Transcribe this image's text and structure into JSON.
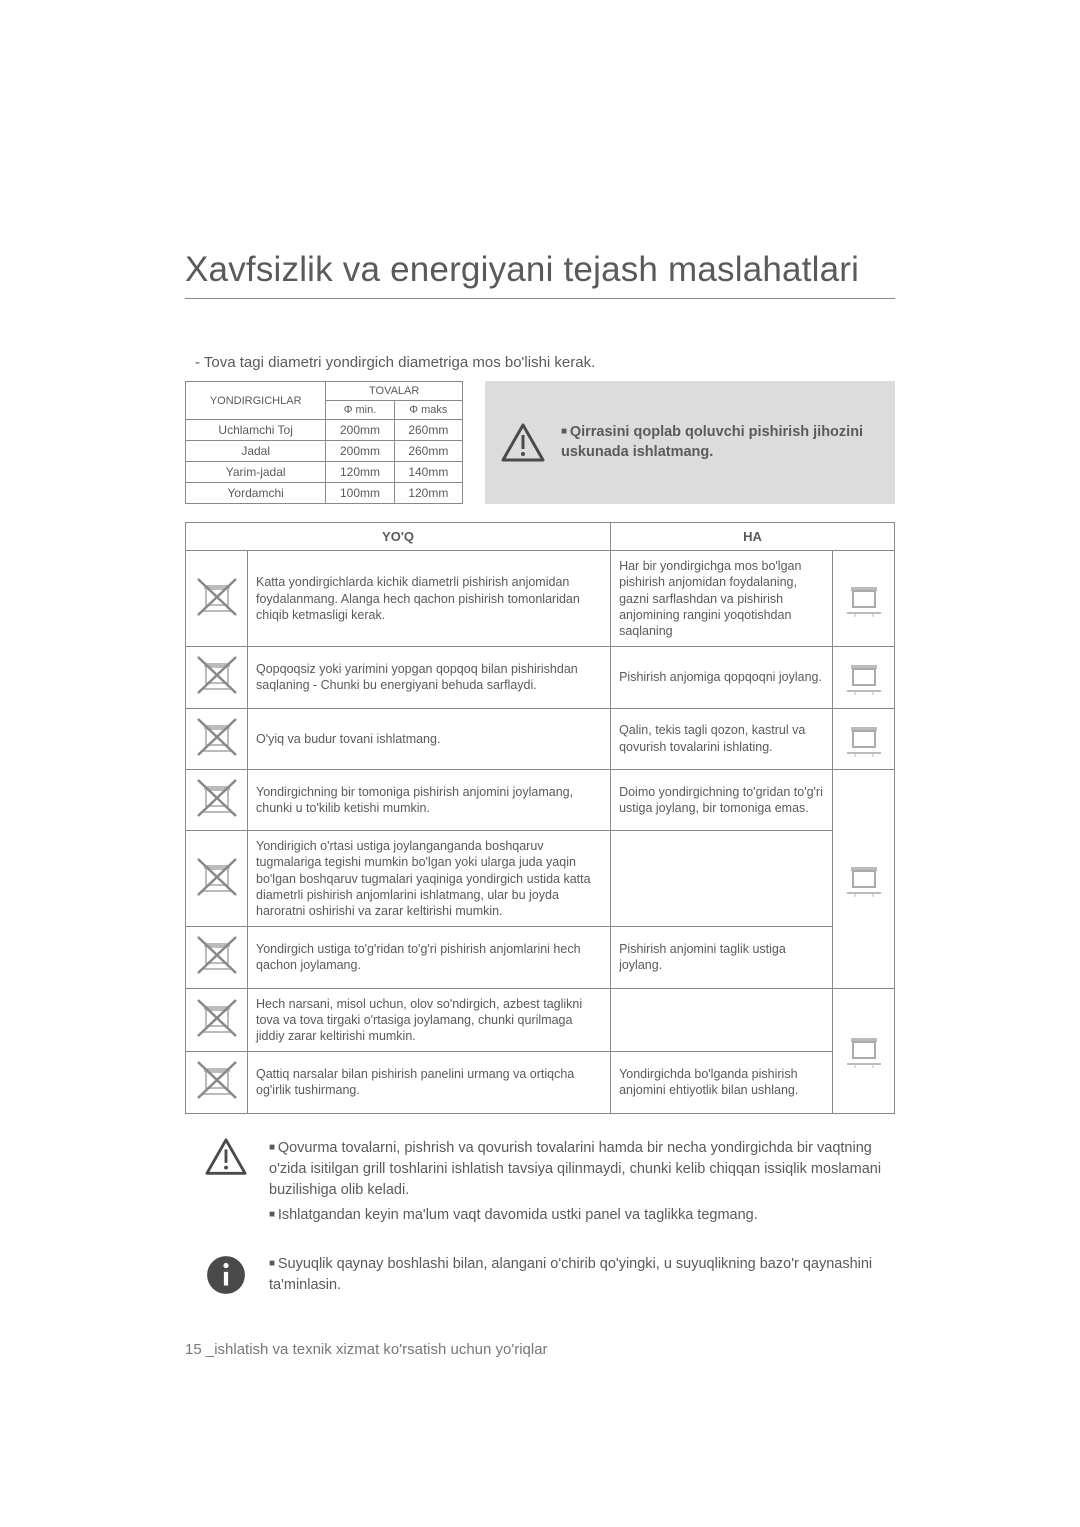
{
  "title": "Xavfsizlik va energiyani tejash maslahatlari",
  "intro": "- Tova tagi diametri yondirgich diametriga mos bo'lishi kerak.",
  "sizes_table": {
    "col_burner": "YONDIRGICHLAR",
    "col_group": "TOVALAR",
    "col_min": "Φ min.",
    "col_max": "Φ maks",
    "rows": [
      {
        "name": "Uchlamchi Toj",
        "min": "200mm",
        "max": "260mm"
      },
      {
        "name": "Jadal",
        "min": "200mm",
        "max": "260mm"
      },
      {
        "name": "Yarim-jadal",
        "min": "120mm",
        "max": "140mm"
      },
      {
        "name": "Yordamchi",
        "min": "100mm",
        "max": "120mm"
      }
    ]
  },
  "warning": "Qirrasini qoplab qoluvchi pishirish jihozini uskunada ishlatmang.",
  "dosdonts": {
    "no_header": "YO'Q",
    "yes_header": "HA",
    "rows": [
      {
        "no": "Katta yondirgichlarda kichik diametrli pishirish anjomidan foydalanmang.\nAlanga hech qachon pishirish tomonlaridan chiqib ketmasligi kerak.",
        "yes": "Har bir yondirgichga mos bo'lgan pishirish anjomidan foydalaning, gazni sarflashdan va pishirish anjomining rangini yoqotishdan saqlaning"
      },
      {
        "no": "Qopqoqsiz yoki yarimini yopgan qopqoq bilan pishirishdan saqlaning - Chunki bu energiyani behuda sarflaydi.",
        "yes": "Pishirish anjomiga qopqoqni joylang."
      },
      {
        "no": "O'yiq va budur tovani ishlatmang.",
        "yes": "Qalin, tekis tagli qozon, kastrul va qovurish tovalarini ishlating."
      },
      {
        "no": "Yondirgichning bir tomoniga pishirish anjomini joylamang, chunki u to'kilib ketishi mumkin.",
        "yes": "Doimo yondirgichning to'gridan to'g'ri ustiga joylang, bir tomoniga emas."
      },
      {
        "no": "Yondirigich o'rtasi ustiga joylanganganda boshqaruv tugmalariga tegishi mumkin bo'lgan yoki ularga juda yaqin bo'lgan boshqaruv tugmalari yaqiniga yondirgich ustida katta diametrli pishirish anjomlarini ishlatmang, ular bu joyda haroratni oshirishi va zarar keltirishi mumkin.",
        "yes": ""
      },
      {
        "no": "Yondirgich ustiga to'g'ridan to'g'ri pishirish anjomlarini hech qachon joylamang.",
        "yes": "Pishirish anjomini taglik ustiga joylang."
      },
      {
        "no": "Hech narsani, misol uchun, olov so'ndirgich, azbest taglikni tova va tova tirgaki o'rtasiga joylamang, chunki qurilmaga jiddiy zarar keltirishi mumkin.",
        "yes": ""
      },
      {
        "no": "Qattiq narsalar bilan pishirish panelini urmang va ortiqcha og'irlik tushirmang.",
        "yes": "Yondirgichda bo'lganda pishirish anjomini ehtiyotlik bilan ushlang."
      }
    ]
  },
  "callout1": {
    "line1": "Qovurma tovalarni, pishrish va qovurish tovalarini hamda bir necha yondirgichda bir vaqtning o'zida isitilgan grill toshlarini ishlatish tavsiya qilinmaydi, chunki kelib chiqqan issiqlik moslamani buzilishiga olib keladi.",
    "line2": "Ishlatgandan keyin ma'lum vaqt davomida ustki panel va taglikka tegmang."
  },
  "callout2": "Suyuqlik qaynay boshlashi bilan, alangani o'chirib qo'yingki, u suyuqlikning bazo'r qaynashini ta'minlasin.",
  "footer": "15 _ishlatish va texnik xizmat ko'rsatish uchun yo'riqlar"
}
